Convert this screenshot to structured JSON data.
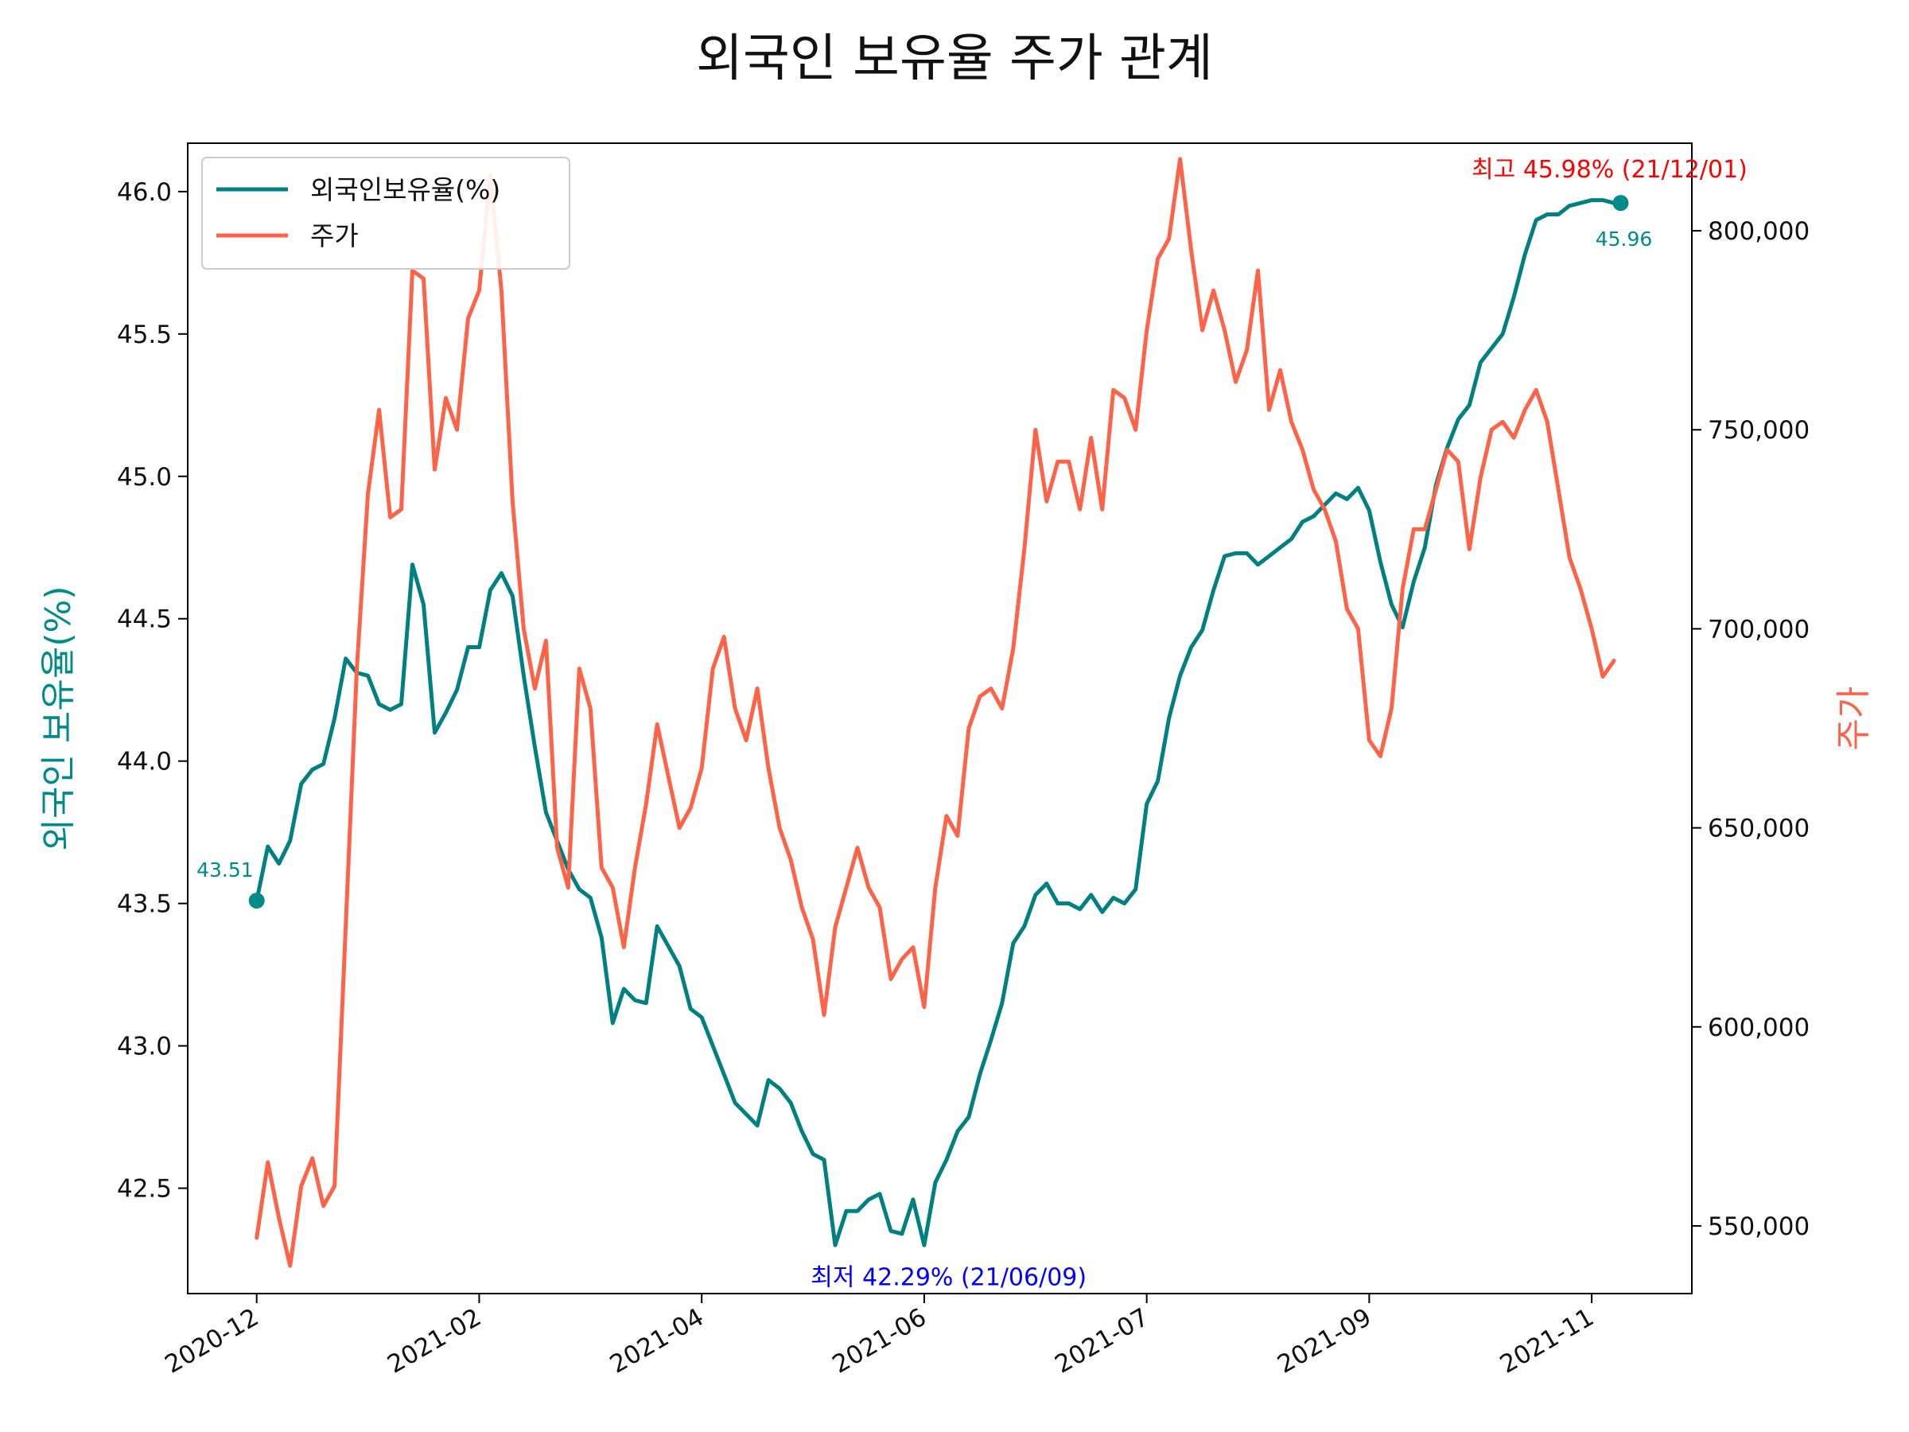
{
  "title": "외국인 보유율 주가 관계",
  "chart_data": {
    "type": "line",
    "title": "외국인 보유율 주가 관계",
    "ylabel_left": "외국인 보유율(%)",
    "ylabel_right": "주가",
    "ylim_left": [
      42.13,
      46.17
    ],
    "ylim_right": [
      533000,
      822000
    ],
    "yticks_left": [
      {
        "v": 42.5,
        "label": "42.5"
      },
      {
        "v": 43.0,
        "label": "43.0"
      },
      {
        "v": 43.5,
        "label": "43.5"
      },
      {
        "v": 44.0,
        "label": "44.0"
      },
      {
        "v": 44.5,
        "label": "44.5"
      },
      {
        "v": 45.0,
        "label": "45.0"
      },
      {
        "v": 45.5,
        "label": "45.5"
      },
      {
        "v": 46.0,
        "label": "46.0"
      }
    ],
    "yticks_right": [
      {
        "v": 550000,
        "label": "550,000"
      },
      {
        "v": 600000,
        "label": "600,000"
      },
      {
        "v": 650000,
        "label": "650,000"
      },
      {
        "v": 700000,
        "label": "700,000"
      },
      {
        "v": 750000,
        "label": "750,000"
      },
      {
        "v": 800000,
        "label": "800,000"
      }
    ],
    "x_range": [
      -3.1,
      64.5
    ],
    "xticks": [
      {
        "x": 0,
        "label": "2020-12"
      },
      {
        "x": 10,
        "label": "2021-02"
      },
      {
        "x": 20,
        "label": "2021-04"
      },
      {
        "x": 30,
        "label": "2021-06"
      },
      {
        "x": 40,
        "label": "2021-07"
      },
      {
        "x": 50,
        "label": "2021-09"
      },
      {
        "x": 60,
        "label": "2021-11"
      }
    ],
    "legend_position": "top-left",
    "series": [
      {
        "name": "외국인보유율(%)",
        "axis": "left",
        "color": "#008080",
        "x": [
          0,
          0.5,
          1,
          1.5,
          2,
          2.5,
          3,
          3.5,
          4,
          4.5,
          5,
          5.5,
          6,
          6.5,
          7,
          7.5,
          8,
          8.5,
          9,
          9.5,
          10,
          10.5,
          11,
          11.5,
          12,
          12.5,
          13,
          13.5,
          14,
          14.5,
          15,
          15.5,
          16,
          16.5,
          17,
          17.5,
          18,
          18.5,
          19,
          19.5,
          20,
          20.5,
          21,
          21.5,
          22,
          22.5,
          23,
          23.5,
          24,
          24.5,
          25,
          25.5,
          26,
          26.5,
          27,
          27.5,
          28,
          28.5,
          29,
          29.5,
          30,
          30.5,
          31,
          31.5,
          32,
          32.5,
          33,
          33.5,
          34,
          34.5,
          35,
          35.5,
          36,
          36.5,
          37,
          37.5,
          38,
          38.5,
          39,
          39.5,
          40,
          40.5,
          41,
          41.5,
          42,
          42.5,
          43,
          43.5,
          44,
          44.5,
          45,
          45.5,
          46,
          46.5,
          47,
          47.5,
          48,
          48.5,
          49,
          49.5,
          50,
          50.5,
          51,
          51.5,
          52,
          52.5,
          53,
          53.5,
          54,
          54.5,
          55,
          55.5,
          56,
          56.5,
          57,
          57.5,
          58,
          58.5,
          59,
          59.5,
          60,
          60.5,
          61,
          61.3
        ],
        "values": [
          43.51,
          43.7,
          43.64,
          43.72,
          43.92,
          43.97,
          43.99,
          44.15,
          44.36,
          44.31,
          44.3,
          44.2,
          44.18,
          44.2,
          44.69,
          44.55,
          44.1,
          44.17,
          44.25,
          44.4,
          44.4,
          44.6,
          44.66,
          44.58,
          44.3,
          44.05,
          43.82,
          43.72,
          43.62,
          43.55,
          43.52,
          43.38,
          43.08,
          43.2,
          43.16,
          43.15,
          43.42,
          43.35,
          43.28,
          43.13,
          43.1,
          43.0,
          42.9,
          42.8,
          42.76,
          42.72,
          42.88,
          42.85,
          42.8,
          42.7,
          42.62,
          42.6,
          42.3,
          42.42,
          42.42,
          42.46,
          42.48,
          42.35,
          42.34,
          42.46,
          42.3,
          42.52,
          42.6,
          42.7,
          42.75,
          42.9,
          43.02,
          43.15,
          43.36,
          43.42,
          43.53,
          43.57,
          43.5,
          43.5,
          43.48,
          43.53,
          43.47,
          43.52,
          43.5,
          43.55,
          43.85,
          43.93,
          44.15,
          44.3,
          44.4,
          44.46,
          44.6,
          44.72,
          44.73,
          44.73,
          44.69,
          44.72,
          44.75,
          44.78,
          44.84,
          44.86,
          44.9,
          44.94,
          44.92,
          44.96,
          44.88,
          44.7,
          44.55,
          44.47,
          44.63,
          44.75,
          44.97,
          45.1,
          45.2,
          45.25,
          45.4,
          45.45,
          45.5,
          45.63,
          45.78,
          45.9,
          45.92,
          45.92,
          45.95,
          45.96,
          45.97,
          45.97,
          45.96,
          45.96
        ]
      },
      {
        "name": "주가",
        "axis": "right",
        "color": "#ff6347",
        "x": [
          0,
          0.5,
          1,
          1.5,
          2,
          2.5,
          3,
          3.5,
          4,
          4.5,
          5,
          5.5,
          6,
          6.5,
          7,
          7.5,
          8,
          8.5,
          9,
          9.5,
          10,
          10.5,
          11,
          11.5,
          12,
          12.5,
          13,
          13.5,
          14,
          14.5,
          15,
          15.5,
          16,
          16.5,
          17,
          17.5,
          18,
          18.5,
          19,
          19.5,
          20,
          20.5,
          21,
          21.5,
          22,
          22.5,
          23,
          23.5,
          24,
          24.5,
          25,
          25.5,
          26,
          26.5,
          27,
          27.5,
          28,
          28.5,
          29,
          29.5,
          30,
          30.5,
          31,
          31.5,
          32,
          32.5,
          33,
          33.5,
          34,
          34.5,
          35,
          35.5,
          36,
          36.5,
          37,
          37.5,
          38,
          38.5,
          39,
          39.5,
          40,
          40.5,
          41,
          41.5,
          42,
          42.5,
          43,
          43.5,
          44,
          44.5,
          45,
          45.5,
          46,
          46.5,
          47,
          47.5,
          48,
          48.5,
          49,
          49.5,
          50,
          50.5,
          51,
          51.5,
          52,
          52.5,
          53,
          53.5,
          54,
          54.5,
          55,
          55.5,
          56,
          56.5,
          57,
          57.5,
          58,
          58.5,
          59,
          59.5,
          60,
          60.5,
          61
        ],
        "values": [
          547000,
          566000,
          552000,
          540000,
          560000,
          567000,
          555000,
          560000,
          625000,
          690000,
          734000,
          755000,
          728000,
          730000,
          790000,
          788000,
          740000,
          758000,
          750000,
          778000,
          785000,
          814000,
          785000,
          732000,
          700000,
          685000,
          697000,
          645000,
          635000,
          690000,
          680000,
          640000,
          635000,
          620000,
          640000,
          656000,
          676000,
          663000,
          650000,
          655000,
          665000,
          690000,
          698000,
          680000,
          672000,
          685000,
          665000,
          650000,
          642000,
          630000,
          622000,
          603000,
          625000,
          635000,
          645000,
          635000,
          630000,
          612000,
          617000,
          620000,
          605000,
          635000,
          653000,
          648000,
          675000,
          683000,
          685000,
          680000,
          695000,
          720000,
          750000,
          732000,
          742000,
          742000,
          730000,
          748000,
          730000,
          760000,
          758000,
          750000,
          775000,
          793000,
          798000,
          818000,
          795000,
          775000,
          785000,
          775000,
          762000,
          770000,
          790000,
          755000,
          765000,
          752000,
          745000,
          735000,
          730000,
          722000,
          705000,
          700000,
          672000,
          668000,
          680000,
          710000,
          725000,
          725000,
          735000,
          745000,
          742000,
          720000,
          738000,
          750000,
          752000,
          748000,
          755000,
          760000,
          752000,
          735000,
          718000,
          710000,
          700000,
          688000,
          692000
        ]
      }
    ],
    "endpoint_markers": [
      {
        "series": "외국인보유율(%)",
        "x": 0,
        "value": 43.51,
        "label": "43.51"
      },
      {
        "series": "외국인보유율(%)",
        "x": 61.3,
        "value": 45.96,
        "label": "45.96"
      }
    ],
    "annotations": [
      {
        "text": "최고 45.98% (21/12/01)",
        "x": 60.8,
        "y_left": 46.05,
        "color": "#ff0000"
      },
      {
        "text": "최저 42.29% (21/06/09)",
        "x": 31.1,
        "y_left": 42.16,
        "color": "#0000ff"
      }
    ]
  }
}
